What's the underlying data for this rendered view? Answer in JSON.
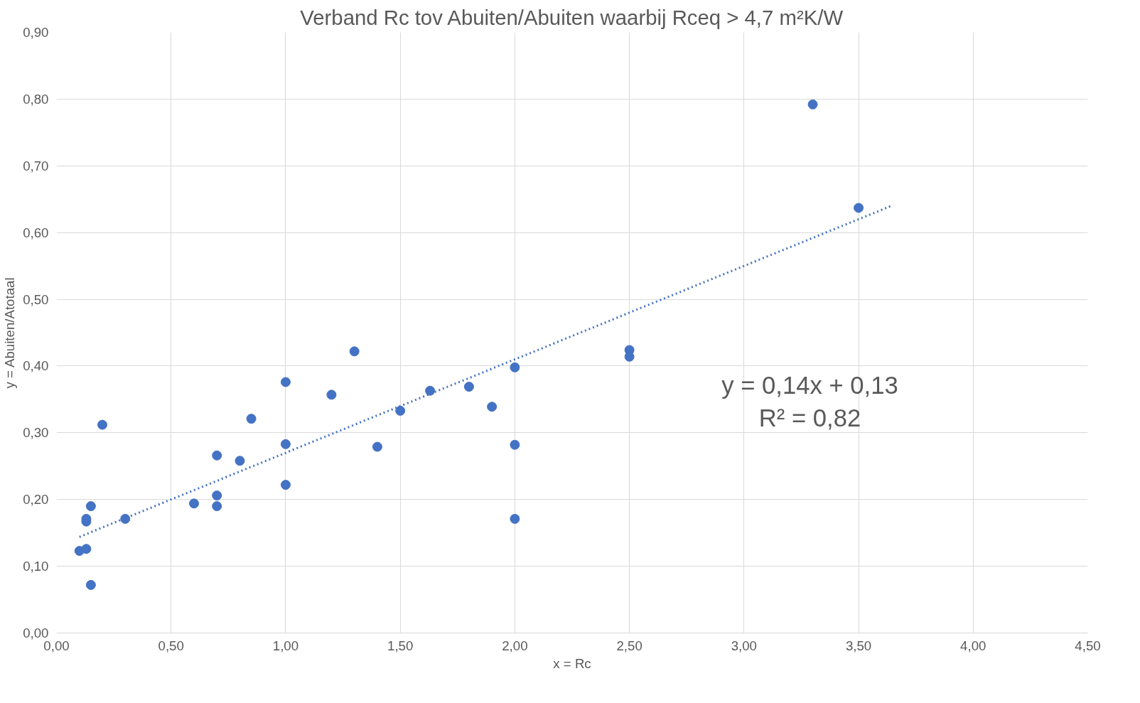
{
  "chart_data": {
    "type": "scatter",
    "title": "Verband Rc tov Abuiten/Abuiten waarbij Rceq > 4,7 m²K/W",
    "xlabel": "x = Rc",
    "ylabel": "y = Abuiten/Atotaal",
    "annotations": [
      "y = 0,14x + 0,13",
      "R² = 0,82"
    ],
    "x": [
      0.1,
      0.13,
      0.15,
      0.13,
      0.13,
      0.15,
      0.2,
      0.3,
      0.6,
      0.7,
      0.7,
      0.7,
      0.8,
      0.85,
      1.0,
      1.0,
      1.0,
      1.2,
      1.3,
      1.4,
      1.5,
      1.63,
      1.8,
      1.9,
      2.0,
      2.0,
      2.0,
      2.5,
      2.5,
      3.3,
      3.5
    ],
    "series": [
      {
        "color": "#4472c4",
        "marker": "circle",
        "values": [
          0.123,
          0.126,
          0.072,
          0.167,
          0.171,
          0.19,
          0.312,
          0.171,
          0.194,
          0.266,
          0.206,
          0.19,
          0.258,
          0.321,
          0.376,
          0.283,
          0.222,
          0.357,
          0.422,
          0.279,
          0.333,
          0.363,
          0.369,
          0.339,
          0.398,
          0.282,
          0.171,
          0.424,
          0.414,
          0.792,
          0.637
        ]
      },
      {
        "type": "line",
        "color": "#4472c4",
        "line_style": "dotted",
        "x": [
          0.1,
          3.65
        ],
        "values": [
          0.144,
          0.641
        ]
      }
    ],
    "xlim": [
      0,
      4.5
    ],
    "ylim": [
      0,
      0.9
    ],
    "xticks": [
      {
        "value": 0,
        "label": "0,00"
      },
      {
        "value": 0.5,
        "label": "0,50"
      },
      {
        "value": 1,
        "label": "1,00"
      },
      {
        "value": 1.5,
        "label": "1,50"
      },
      {
        "value": 2,
        "label": "2,00"
      },
      {
        "value": 2.5,
        "label": "2,50"
      },
      {
        "value": 3,
        "label": "3,00"
      },
      {
        "value": 3.5,
        "label": "3,50"
      },
      {
        "value": 4,
        "label": "4,00"
      },
      {
        "value": 4.5,
        "label": "4,50"
      }
    ],
    "yticks": [
      {
        "value": 0,
        "label": "0,00"
      },
      {
        "value": 0.1,
        "label": "0,10"
      },
      {
        "value": 0.2,
        "label": "0,20"
      },
      {
        "value": 0.3,
        "label": "0,30"
      },
      {
        "value": 0.4,
        "label": "0,40"
      },
      {
        "value": 0.5,
        "label": "0,50"
      },
      {
        "value": 0.6,
        "label": "0,60"
      },
      {
        "value": 0.7,
        "label": "0,70"
      },
      {
        "value": 0.8,
        "label": "0,80"
      },
      {
        "value": 0.9,
        "label": "0,90"
      }
    ],
    "grid": true
  }
}
